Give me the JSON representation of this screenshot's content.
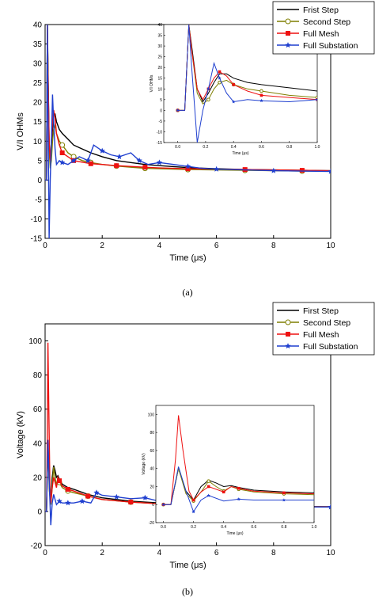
{
  "chart_data": [
    {
      "type": "line",
      "caption": "(a)",
      "xlabel": "Time (μs)",
      "ylabel": "V/I OHMs",
      "xlim": [
        0,
        10
      ],
      "ylim": [
        -15,
        40
      ],
      "xticks": [
        "0",
        "2",
        "4",
        "6",
        "8",
        "10"
      ],
      "yticks": [
        "-15",
        "-10",
        "-5",
        "0",
        "5",
        "10",
        "15",
        "20",
        "25",
        "30",
        "35",
        "40"
      ],
      "legend_position": "top-right",
      "series": [
        {
          "name": "Frist Step",
          "color": "#000000",
          "marker": "none",
          "x": [
            0,
            0.05,
            0.08,
            0.1,
            0.14,
            0.18,
            0.22,
            0.26,
            0.3,
            0.35,
            0.4,
            0.5,
            0.6,
            0.8,
            1,
            1.3,
            1.6,
            2,
            2.5,
            3,
            3.5,
            4,
            5,
            6,
            7,
            8,
            9,
            10
          ],
          "y": [
            0,
            0,
            40,
            30,
            10,
            4,
            8,
            13,
            17,
            17,
            15,
            13,
            12,
            10.5,
            9,
            8,
            7,
            6,
            5,
            4.5,
            4,
            3.7,
            3.2,
            2.9,
            2.7,
            2.6,
            2.5,
            2.4
          ]
        },
        {
          "name": "Second Step",
          "color": "#7f7f00",
          "marker": "circle-open",
          "x": [
            0,
            0.05,
            0.08,
            0.1,
            0.14,
            0.18,
            0.22,
            0.26,
            0.3,
            0.35,
            0.4,
            0.5,
            0.6,
            0.8,
            1,
            1.3,
            1.6,
            2,
            2.5,
            3,
            3.5,
            4,
            5,
            6,
            7,
            8,
            9,
            10
          ],
          "y": [
            0,
            0,
            40,
            28,
            8,
            3,
            5,
            10,
            13,
            14,
            12,
            10,
            9,
            7,
            6,
            5,
            4.5,
            4,
            3.6,
            3.3,
            3,
            2.9,
            2.7,
            2.6,
            2.5,
            2.4,
            2.3,
            2.3
          ]
        },
        {
          "name": "Full Mesh",
          "color": "#ee1111",
          "marker": "square",
          "x": [
            0,
            0.05,
            0.08,
            0.1,
            0.14,
            0.18,
            0.22,
            0.26,
            0.3,
            0.35,
            0.4,
            0.5,
            0.6,
            0.8,
            1,
            1.3,
            1.6,
            2,
            2.5,
            3,
            3.5,
            4,
            5,
            6,
            7,
            8,
            9,
            10
          ],
          "y": [
            0,
            0,
            40,
            28,
            10,
            5,
            10,
            15,
            18,
            16,
            12,
            9,
            7,
            6,
            5,
            4.6,
            4.2,
            4,
            3.7,
            3.5,
            3.3,
            3.1,
            2.9,
            2.8,
            2.7,
            2.6,
            2.5,
            2.4
          ]
        },
        {
          "name": "Full Substation",
          "color": "#1f3fcf",
          "marker": "star",
          "x": [
            0,
            0.05,
            0.08,
            0.1,
            0.14,
            0.18,
            0.22,
            0.26,
            0.3,
            0.35,
            0.4,
            0.5,
            0.6,
            0.8,
            1,
            1.2,
            1.5,
            1.7,
            2,
            2.3,
            2.6,
            3,
            3.3,
            3.6,
            4,
            4.5,
            5,
            5.5,
            6,
            7,
            8,
            9,
            10
          ],
          "y": [
            0,
            0,
            40,
            20,
            -15,
            0,
            10,
            22,
            15,
            8,
            4,
            5,
            4.5,
            4,
            5,
            6,
            5,
            9,
            7.5,
            6.5,
            6,
            7,
            5,
            4,
            4.5,
            4,
            3.5,
            3,
            2.8,
            2.6,
            2.4,
            2.3,
            2.2
          ]
        }
      ],
      "inset": {
        "xlabel": "Time (μs)",
        "ylabel": "V/I OHMs",
        "xlim": [
          -0.1,
          1.0
        ],
        "ylim": [
          -15,
          40
        ],
        "xticks": [
          "0.0",
          "0.2",
          "0.4",
          "0.6",
          "0.8",
          "1.0"
        ],
        "yticks": [
          "-15",
          "-10",
          "-5",
          "0",
          "5",
          "10",
          "15",
          "20",
          "25",
          "30",
          "35",
          "40"
        ]
      }
    },
    {
      "type": "line",
      "caption": "(b)",
      "xlabel": "Time (μs)",
      "ylabel": "Voltage (kV)",
      "xlim": [
        0,
        10
      ],
      "ylim": [
        -20,
        110
      ],
      "xticks": [
        "0",
        "2",
        "4",
        "6",
        "8",
        "10"
      ],
      "yticks": [
        "-20",
        "0",
        "20",
        "40",
        "60",
        "80",
        "100"
      ],
      "legend_position": "top-right",
      "series": [
        {
          "name": "First Step",
          "color": "#000000",
          "marker": "none",
          "x": [
            0,
            0.05,
            0.1,
            0.15,
            0.2,
            0.25,
            0.3,
            0.35,
            0.4,
            0.45,
            0.5,
            0.6,
            0.8,
            1,
            1.5,
            2,
            3,
            4,
            5,
            6,
            7,
            8,
            9,
            10
          ],
          "y": [
            0,
            0,
            40,
            15,
            5,
            20,
            27,
            24,
            20,
            21,
            19,
            16,
            14,
            13,
            10,
            8,
            6,
            5,
            4,
            3.5,
            3.2,
            3,
            2.9,
            2.8
          ]
        },
        {
          "name": "Second Step",
          "color": "#7f7f00",
          "marker": "circle-open",
          "x": [
            0,
            0.05,
            0.1,
            0.15,
            0.2,
            0.25,
            0.3,
            0.35,
            0.4,
            0.45,
            0.5,
            0.6,
            0.8,
            1,
            1.5,
            2,
            3,
            4,
            5,
            6,
            7,
            8,
            9,
            10
          ],
          "y": [
            0,
            0,
            40,
            12,
            4,
            14,
            26,
            20,
            15,
            20,
            17,
            14,
            12,
            11,
            9,
            7,
            5.5,
            4.5,
            3.8,
            3.3,
            3,
            2.9,
            2.8,
            2.7
          ]
        },
        {
          "name": "Full Mesh",
          "color": "#ee1111",
          "marker": "square",
          "x": [
            0,
            0.05,
            0.08,
            0.1,
            0.13,
            0.17,
            0.2,
            0.25,
            0.3,
            0.35,
            0.4,
            0.45,
            0.5,
            0.6,
            0.8,
            1,
            1.5,
            2,
            3,
            4,
            5,
            6,
            7,
            8,
            9,
            10
          ],
          "y": [
            0,
            0,
            50,
            99,
            60,
            15,
            5,
            14,
            20,
            17,
            14,
            20,
            18,
            15,
            13,
            12,
            9,
            7,
            5.5,
            4.5,
            3.8,
            3.3,
            3,
            2.9,
            2.8,
            2.7
          ]
        },
        {
          "name": "Full Substation",
          "color": "#1f3fcf",
          "marker": "star",
          "x": [
            0,
            0.05,
            0.1,
            0.15,
            0.2,
            0.25,
            0.3,
            0.4,
            0.5,
            0.6,
            0.8,
            1,
            1.3,
            1.6,
            1.8,
            2,
            2.5,
            3,
            3.5,
            4,
            4.5,
            5,
            6,
            7,
            8,
            9,
            10
          ],
          "y": [
            0,
            0,
            42,
            15,
            -8,
            5,
            10,
            4,
            6,
            5,
            5,
            5,
            6,
            5,
            11,
            9.5,
            8.5,
            7.5,
            8,
            6,
            4,
            4.5,
            3.5,
            3,
            2.8,
            2.7,
            2.6
          ]
        }
      ],
      "inset": {
        "xlabel": "Time (μs)",
        "ylabel": "Voltage (kV)",
        "xlim": [
          -0.05,
          1.0
        ],
        "ylim": [
          -20,
          110
        ],
        "xticks": [
          "0.0",
          "0.2",
          "0.4",
          "0.6",
          "0.8",
          "1.0"
        ],
        "yticks": [
          "-20",
          "0",
          "20",
          "40",
          "60",
          "80",
          "100"
        ]
      }
    }
  ]
}
